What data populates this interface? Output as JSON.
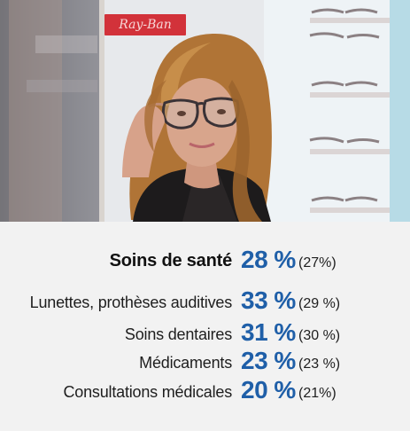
{
  "photo": {
    "sign_text": "Ray-Ban",
    "colors": {
      "skin": "#d8a58c",
      "hair": "#b07436",
      "jacket": "#1d1b1c",
      "frames": "#3a3236"
    }
  },
  "stats": {
    "main": {
      "label": "Soins de santé",
      "value": "28 %",
      "previous": "(27%)"
    },
    "items": [
      {
        "label": "Lunettes, prothèses auditives",
        "value": "33 %",
        "previous": "(29 %)"
      },
      {
        "label": "Soins dentaires",
        "value": "31 %",
        "previous": "(30 %)"
      },
      {
        "label": "Médicaments",
        "value": "23 %",
        "previous": "(23 %)"
      },
      {
        "label": "Consultations médicales",
        "value": "20 %",
        "previous": "(21%)"
      }
    ],
    "colors": {
      "accent": "#1f5fa8",
      "text": "#1e1e1e",
      "background": "#f2f2f2"
    }
  }
}
